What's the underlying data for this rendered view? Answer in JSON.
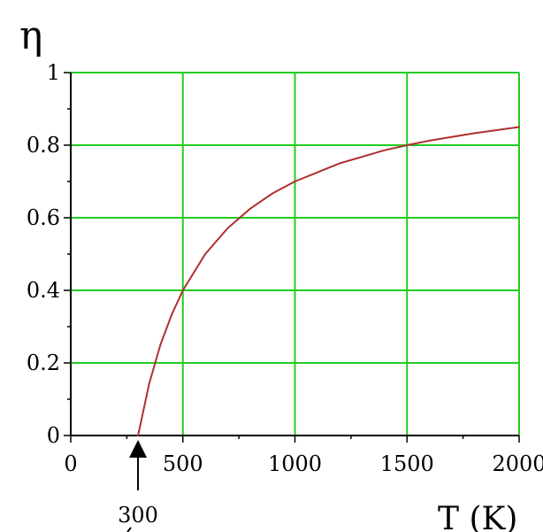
{
  "chart_data": {
    "type": "line",
    "xlabel": "T (K)",
    "ylabel": "η",
    "xlim": [
      0,
      2000
    ],
    "ylim": [
      0,
      1
    ],
    "x_ticks": [
      0,
      500,
      1000,
      1500,
      2000
    ],
    "x_tick_labels": [
      "0",
      "500",
      "1000",
      "1500",
      "2000"
    ],
    "y_ticks": [
      0,
      0.2,
      0.4,
      0.6,
      0.8,
      1
    ],
    "y_tick_labels": [
      "0",
      "0.2",
      "0.4",
      "0.6",
      "0.8",
      "1"
    ],
    "grid": true,
    "grid_color": "#22cc22",
    "line_color": "#b03030",
    "series": [
      {
        "x": [
          300,
          350,
          400,
          450,
          500,
          600,
          700,
          800,
          900,
          1000,
          1200,
          1400,
          1500,
          1600,
          1800,
          2000
        ],
        "values": [
          0,
          0.143,
          0.25,
          0.333,
          0.4,
          0.5,
          0.571,
          0.625,
          0.667,
          0.7,
          0.75,
          0.786,
          0.8,
          0.8125,
          0.833,
          0.85
        ]
      }
    ],
    "annotation": {
      "label": "300",
      "x": 300,
      "marker": "arrow-up"
    }
  }
}
